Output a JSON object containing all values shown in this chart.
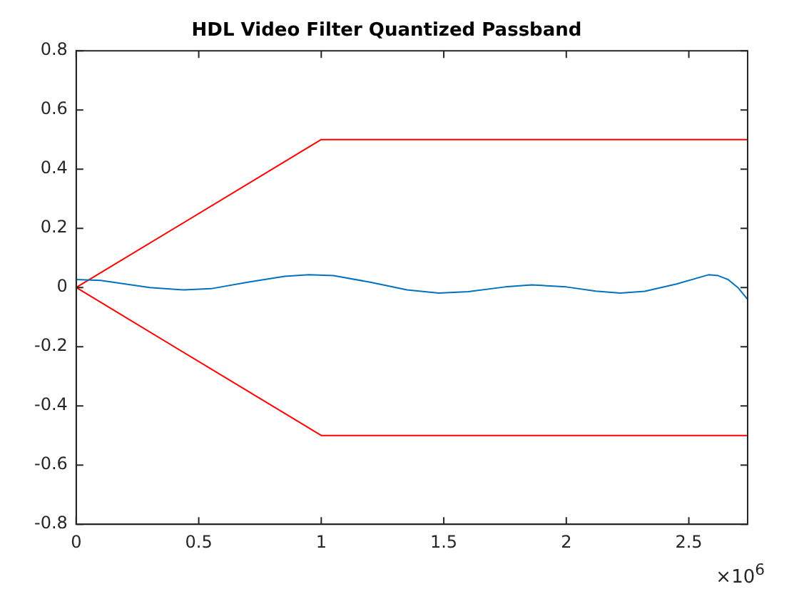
{
  "chart_data": {
    "type": "line",
    "title": "HDL Video Filter Quantized Passband",
    "xlim": [
      0,
      2.74
    ],
    "xticks": [
      0,
      0.5,
      1,
      1.5,
      2,
      2.5
    ],
    "ylim": [
      -0.8,
      0.8
    ],
    "yticks": [
      -0.8,
      -0.6,
      -0.4,
      -0.2,
      0,
      0.2,
      0.4,
      0.6,
      0.8
    ],
    "annotations": [
      "×10$^{6}$"
    ],
    "grid": false,
    "legend": false,
    "marker": "none",
    "line_style": "solid",
    "series": [
      {
        "color": "#0072bd",
        "x": [
          0,
          0.1,
          0.2,
          0.3,
          0.44,
          0.55,
          0.7,
          0.85,
          0.95,
          1.05,
          1.2,
          1.35,
          1.48,
          1.6,
          1.75,
          1.86,
          2.0,
          2.12,
          2.22,
          2.32,
          2.45,
          2.58,
          2.62,
          2.66,
          2.7,
          2.74
        ],
        "values": [
          0.027,
          0.024,
          0.012,
          0.0,
          -0.008,
          -0.004,
          0.018,
          0.038,
          0.043,
          0.04,
          0.018,
          -0.008,
          -0.019,
          -0.014,
          0.002,
          0.009,
          0.002,
          -0.012,
          -0.019,
          -0.013,
          0.012,
          0.043,
          0.04,
          0.027,
          0.0,
          -0.04
        ]
      },
      {
        "color": "#ff0000",
        "x": [
          0,
          1,
          2.74
        ],
        "values": [
          0,
          0.5,
          0.5
        ]
      },
      {
        "color": "#ff0000",
        "x": [
          0,
          1,
          2.74
        ],
        "values": [
          0,
          -0.5,
          -0.5
        ]
      }
    ]
  }
}
